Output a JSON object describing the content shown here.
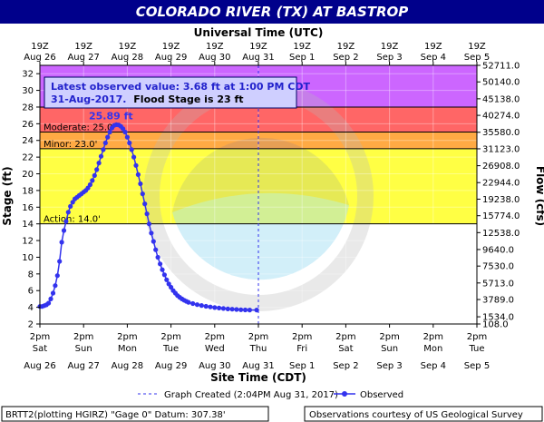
{
  "header": {
    "title": "COLORADO RIVER (TX) AT BASTROP"
  },
  "top_axis": {
    "title": "Universal Time (UTC)",
    "ticks": [
      {
        "time": "19Z",
        "date": "Aug 26"
      },
      {
        "time": "19Z",
        "date": "Aug 27"
      },
      {
        "time": "19Z",
        "date": "Aug 28"
      },
      {
        "time": "19Z",
        "date": "Aug 29"
      },
      {
        "time": "19Z",
        "date": "Aug 30"
      },
      {
        "time": "19Z",
        "date": "Aug 31"
      },
      {
        "time": "19Z",
        "date": "Sep 1"
      },
      {
        "time": "19Z",
        "date": "Sep 2"
      },
      {
        "time": "19Z",
        "date": "Sep 3"
      },
      {
        "time": "19Z",
        "date": "Sep 4"
      },
      {
        "time": "19Z",
        "date": "Sep 5"
      }
    ]
  },
  "bottom_axis": {
    "title": "Site Time (CDT)",
    "ticks": [
      {
        "time": "2pm",
        "day": "Sat",
        "date": "Aug 26"
      },
      {
        "time": "2pm",
        "day": "Sun",
        "date": "Aug 27"
      },
      {
        "time": "2pm",
        "day": "Mon",
        "date": "Aug 28"
      },
      {
        "time": "2pm",
        "day": "Tue",
        "date": "Aug 29"
      },
      {
        "time": "2pm",
        "day": "Wed",
        "date": "Aug 30"
      },
      {
        "time": "2pm",
        "day": "Thu",
        "date": "Aug 31"
      },
      {
        "time": "2pm",
        "day": "Fri",
        "date": "Sep 1"
      },
      {
        "time": "2pm",
        "day": "Sat",
        "date": "Sep 2"
      },
      {
        "time": "2pm",
        "day": "Sun",
        "date": "Sep 3"
      },
      {
        "time": "2pm",
        "day": "Mon",
        "date": "Sep 4"
      },
      {
        "time": "2pm",
        "day": "Tue",
        "date": "Sep 5"
      }
    ]
  },
  "observation_box": {
    "line1": "Latest observed value: 3.68 ft at 1:00 PM CDT",
    "line2_date": "31-Aug-2017.",
    "line2_flood": "Flood Stage is 23 ft"
  },
  "legend": {
    "created": "Graph Created (2:04PM Aug 31, 2017)",
    "observed": "Observed"
  },
  "footer": {
    "left": "BRTT2(plotting HGIRZ) \"Gage 0\" Datum: 307.38'",
    "right": "Observations courtesy of US Geological Survey"
  },
  "colors": {
    "title_bar": "#00008b",
    "major": "#cc66ff",
    "moderate": "#ff6666",
    "minor": "#ffaa44",
    "action": "#ffff44",
    "observed": "#3333ee"
  },
  "chart_data": {
    "type": "line",
    "xlabel": "Site Time (CDT)",
    "ylabel": "Stage (ft)",
    "y2label": "Flow (cfs)",
    "x_ticks": [
      "Aug 26 2pm",
      "Aug 27 2pm",
      "Aug 28 2pm",
      "Aug 29 2pm",
      "Aug 30 2pm",
      "Aug 31 2pm",
      "Sep 1 2pm",
      "Sep 2 2pm",
      "Sep 3 2pm",
      "Sep 4 2pm",
      "Sep 5 2pm"
    ],
    "ylim": [
      2,
      33
    ],
    "y_ticks": [
      2,
      4,
      6,
      8,
      10,
      12,
      14,
      16,
      18,
      20,
      22,
      24,
      26,
      28,
      30,
      32
    ],
    "y2_ticks": [
      {
        "stage": 3.25,
        "label": "108.0"
      },
      {
        "stage": 4.25,
        "label": "1534.0"
      },
      {
        "stage": 6.65,
        "label": "3789.0"
      },
      {
        "stage": 8.95,
        "label": "5713.0"
      },
      {
        "stage": 11.3,
        "label": "7530.0"
      },
      {
        "stage": 13.6,
        "label": "9640.0"
      },
      {
        "stage": 15.95,
        "label": "12538.0"
      },
      {
        "stage": 18.3,
        "label": "15774.0"
      },
      {
        "stage": 20.6,
        "label": "19238.0"
      },
      {
        "stage": 22.9,
        "label": "22944.0"
      },
      {
        "stage": 25.25,
        "label": "26908.0"
      },
      {
        "stage": 27.6,
        "label": "31123.0"
      },
      {
        "stage": 29.9,
        "label": "35580.0"
      },
      {
        "stage": 32.25,
        "label": "40274.0"
      },
      {
        "stage": 34.55,
        "label": "45138.0"
      },
      {
        "stage": 36.9,
        "label": "50140.0"
      },
      {
        "stage": 39.2,
        "label": "52711.0"
      }
    ],
    "flood_categories": [
      {
        "name": "Major",
        "label": "Major: 28.0'",
        "stage": 28
      },
      {
        "name": "Moderate",
        "label": "Moderate: 25.0'",
        "stage": 25
      },
      {
        "name": "Minor",
        "label": "Minor: 23.0'",
        "stage": 23
      },
      {
        "name": "Action",
        "label": "Action: 14.0'",
        "stage": 14
      }
    ],
    "peak": {
      "label": "25.89 ft",
      "day": 1.75,
      "stage": 25.89
    },
    "graph_created_day": 5.0,
    "series": [
      {
        "name": "Observed",
        "x_unit": "days after Aug 26 2pm CDT",
        "points": [
          [
            0.0,
            4.1
          ],
          [
            0.05,
            4.1
          ],
          [
            0.1,
            4.2
          ],
          [
            0.15,
            4.3
          ],
          [
            0.2,
            4.5
          ],
          [
            0.25,
            5.0
          ],
          [
            0.3,
            5.7
          ],
          [
            0.35,
            6.6
          ],
          [
            0.4,
            7.8
          ],
          [
            0.45,
            9.5
          ],
          [
            0.5,
            11.8
          ],
          [
            0.55,
            13.2
          ],
          [
            0.6,
            14.3
          ],
          [
            0.65,
            15.4
          ],
          [
            0.7,
            16.1
          ],
          [
            0.75,
            16.6
          ],
          [
            0.8,
            17.0
          ],
          [
            0.85,
            17.2
          ],
          [
            0.9,
            17.4
          ],
          [
            0.95,
            17.6
          ],
          [
            1.0,
            17.8
          ],
          [
            1.05,
            18.0
          ],
          [
            1.1,
            18.3
          ],
          [
            1.15,
            18.7
          ],
          [
            1.2,
            19.2
          ],
          [
            1.25,
            19.8
          ],
          [
            1.3,
            20.5
          ],
          [
            1.35,
            21.3
          ],
          [
            1.4,
            22.1
          ],
          [
            1.45,
            22.9
          ],
          [
            1.5,
            23.7
          ],
          [
            1.55,
            24.4
          ],
          [
            1.6,
            25.0
          ],
          [
            1.65,
            25.5
          ],
          [
            1.7,
            25.8
          ],
          [
            1.75,
            25.89
          ],
          [
            1.8,
            25.85
          ],
          [
            1.85,
            25.7
          ],
          [
            1.9,
            25.4
          ],
          [
            1.95,
            25.0
          ],
          [
            2.0,
            24.4
          ],
          [
            2.05,
            23.7
          ],
          [
            2.1,
            22.9
          ],
          [
            2.15,
            22.0
          ],
          [
            2.2,
            21.0
          ],
          [
            2.25,
            19.9
          ],
          [
            2.3,
            18.8
          ],
          [
            2.35,
            17.6
          ],
          [
            2.4,
            16.4
          ],
          [
            2.45,
            15.2
          ],
          [
            2.5,
            14.0
          ],
          [
            2.55,
            12.9
          ],
          [
            2.6,
            11.9
          ],
          [
            2.65,
            10.9
          ],
          [
            2.7,
            10.0
          ],
          [
            2.75,
            9.2
          ],
          [
            2.8,
            8.5
          ],
          [
            2.85,
            7.9
          ],
          [
            2.9,
            7.3
          ],
          [
            2.95,
            6.8
          ],
          [
            3.0,
            6.4
          ],
          [
            3.05,
            6.0
          ],
          [
            3.1,
            5.7
          ],
          [
            3.15,
            5.4
          ],
          [
            3.2,
            5.2
          ],
          [
            3.25,
            5.0
          ],
          [
            3.3,
            4.85
          ],
          [
            3.35,
            4.72
          ],
          [
            3.4,
            4.6
          ],
          [
            3.5,
            4.45
          ],
          [
            3.6,
            4.32
          ],
          [
            3.7,
            4.22
          ],
          [
            3.8,
            4.12
          ],
          [
            3.9,
            4.04
          ],
          [
            4.0,
            3.97
          ],
          [
            4.1,
            3.91
          ],
          [
            4.2,
            3.86
          ],
          [
            4.3,
            3.81
          ],
          [
            4.4,
            3.77
          ],
          [
            4.5,
            3.74
          ],
          [
            4.6,
            3.71
          ],
          [
            4.7,
            3.69
          ],
          [
            4.8,
            3.68
          ],
          [
            4.96,
            3.68
          ]
        ]
      }
    ]
  }
}
